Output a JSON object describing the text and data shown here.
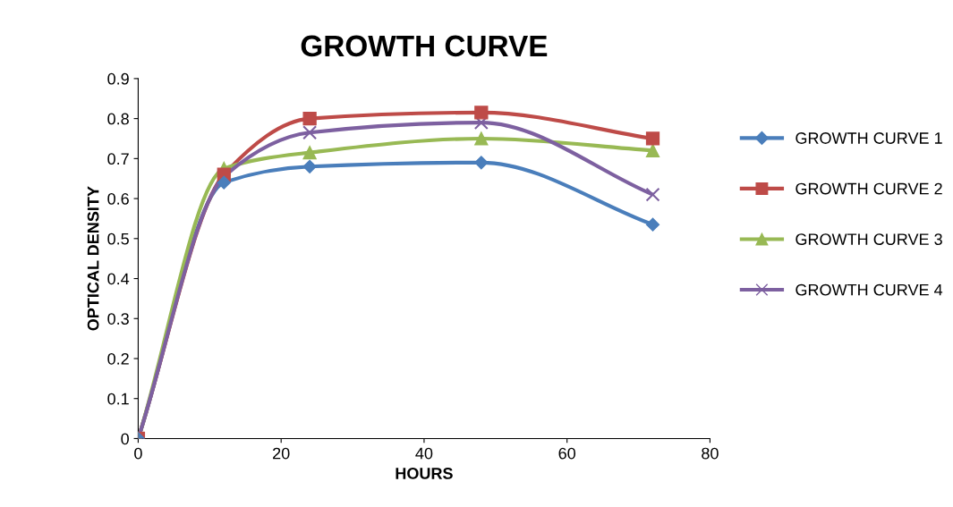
{
  "chart_data": {
    "type": "line",
    "title": "GROWTH CURVE",
    "xlabel": "HOURS",
    "ylabel": "OPTICAL DENSITY",
    "x": [
      0,
      12,
      24,
      48,
      72
    ],
    "series": [
      {
        "name": "GROWTH CURVE 1",
        "color": "#4a7ebb",
        "marker": "diamond",
        "values": [
          0,
          0.64,
          0.68,
          0.69,
          0.535
        ]
      },
      {
        "name": "GROWTH CURVE 2",
        "color": "#be4b48",
        "marker": "square",
        "values": [
          0,
          0.66,
          0.8,
          0.815,
          0.75
        ]
      },
      {
        "name": "GROWTH CURVE 3",
        "color": "#98b954",
        "marker": "triangle",
        "values": [
          0,
          0.675,
          0.715,
          0.75,
          0.72
        ]
      },
      {
        "name": "GROWTH CURVE 4",
        "color": "#7d60a0",
        "marker": "cross",
        "values": [
          0,
          0.655,
          0.765,
          0.79,
          0.61
        ]
      }
    ],
    "xlim": [
      0,
      80
    ],
    "xticks": [
      0,
      20,
      40,
      60,
      80
    ],
    "ylim": [
      0,
      0.9
    ],
    "yticks": [
      0,
      0.1,
      0.2,
      0.3,
      0.4,
      0.5,
      0.6,
      0.7,
      0.8,
      0.9
    ],
    "grid": false,
    "legend": "right",
    "line_style": "solid"
  }
}
